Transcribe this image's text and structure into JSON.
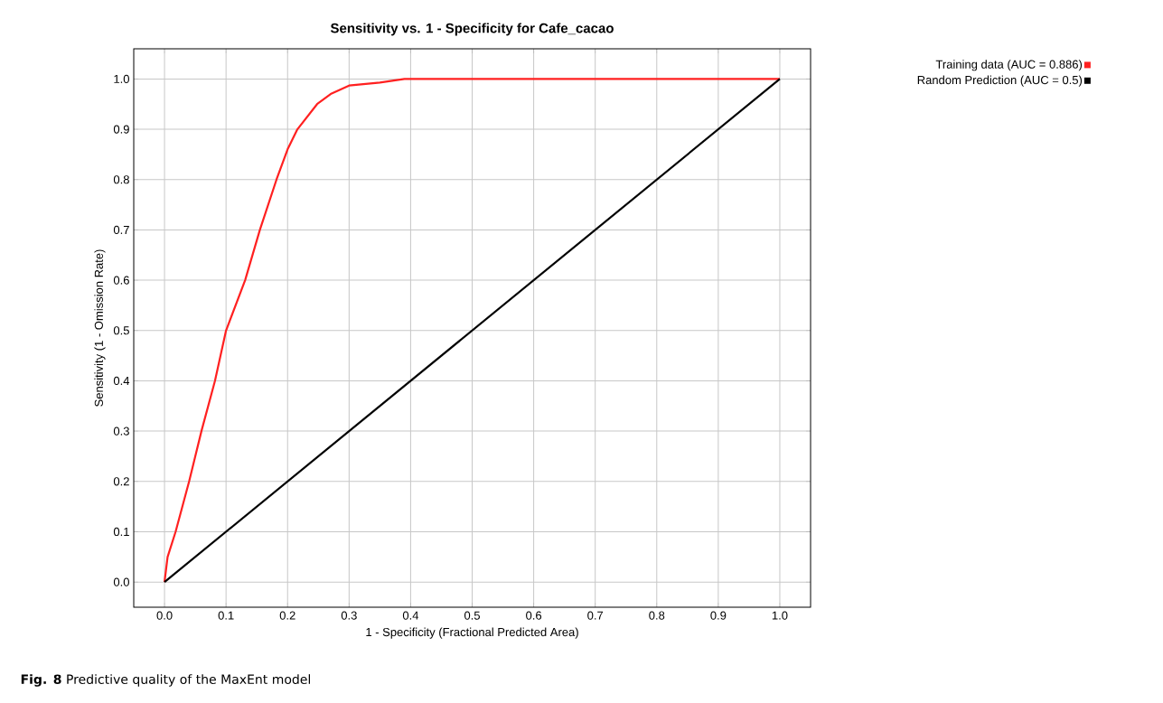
{
  "chart_data": {
    "type": "line",
    "title": "Sensitivity vs. 1 - Specificity for Cafe_cacao",
    "xlabel": "1 - Specificity  (Fractional Predicted Area)",
    "ylabel": "Sensitivity  (1 - Omission Rate)",
    "series": [
      {
        "name": "Training data (AUC = 0.886)",
        "color": "#ff2020",
        "x": [
          0,
          0.005,
          0.018,
          0.04,
          0.06,
          0.082,
          0.1,
          0.131,
          0.155,
          0.182,
          0.2,
          0.216,
          0.248,
          0.27,
          0.3,
          0.35,
          0.39,
          1.0
        ],
        "values": [
          0,
          0.05,
          0.1,
          0.2,
          0.3,
          0.4,
          0.5,
          0.6,
          0.7,
          0.8,
          0.86,
          0.9,
          0.95,
          0.97,
          0.987,
          0.993,
          1.0,
          1.0
        ]
      },
      {
        "name": "Random Prediction (AUC = 0.5)",
        "color": "#000000",
        "x": [
          0,
          1.0
        ],
        "values": [
          0,
          1.0
        ]
      }
    ],
    "xlim": [
      -0.05,
      1.05
    ],
    "ylim": [
      -0.05,
      1.06
    ],
    "xticks": [
      {
        "value": 0,
        "label": "0.0"
      },
      0.1,
      0.2,
      0.3,
      0.4,
      0.5,
      0.6,
      0.7,
      0.8,
      0.9,
      {
        "value": 1,
        "label": "1.0"
      }
    ],
    "yticks": [
      {
        "value": 0,
        "label": "0.0"
      },
      0.1,
      0.2,
      0.3,
      0.4,
      0.5,
      0.6,
      0.7,
      0.8,
      0.9,
      {
        "value": 1,
        "label": "1.0"
      }
    ],
    "grid": true,
    "legend": "top right",
    "marker": "none",
    "line_style": "solid",
    "annotations": [
      "**Fig. 8** Predictive quality of the MaxEnt model"
    ]
  }
}
